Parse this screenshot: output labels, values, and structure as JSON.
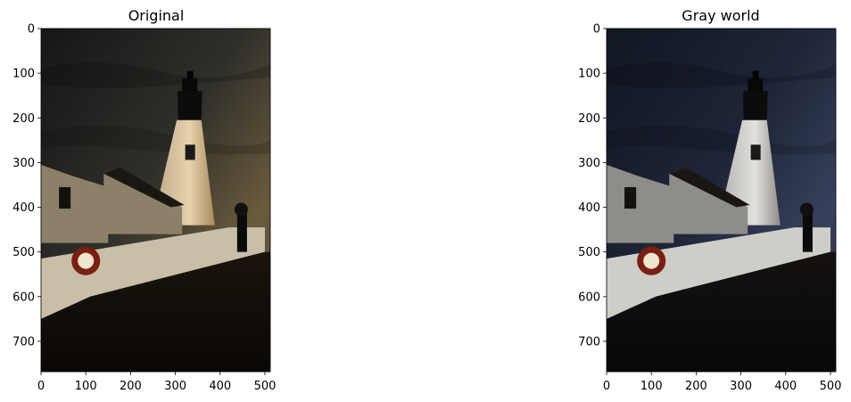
{
  "panels": [
    {
      "id": "original",
      "title": "Original",
      "image_label": "lighthouse-photo",
      "x_ticks": [
        "0",
        "100",
        "200",
        "300",
        "400",
        "500"
      ],
      "y_ticks": [
        "0",
        "100",
        "200",
        "300",
        "400",
        "500",
        "600",
        "700"
      ]
    },
    {
      "id": "grayworld",
      "title": "Gray world",
      "image_label": "lighthouse-photo-gray-world",
      "x_ticks": [
        "0",
        "100",
        "200",
        "300",
        "400",
        "500"
      ],
      "y_ticks": [
        "0",
        "100",
        "200",
        "300",
        "400",
        "500",
        "600",
        "700"
      ]
    }
  ],
  "image": {
    "width": 512,
    "height": 768
  },
  "colors": {
    "original_sky": "#2a2a26",
    "original_sky_warm": "#6a5a3a",
    "original_ground": "#0f0b08",
    "gray_sky": "#1c2236",
    "gray_sky_warm": "#3b4763",
    "gray_ground": "#0b0b0e"
  }
}
